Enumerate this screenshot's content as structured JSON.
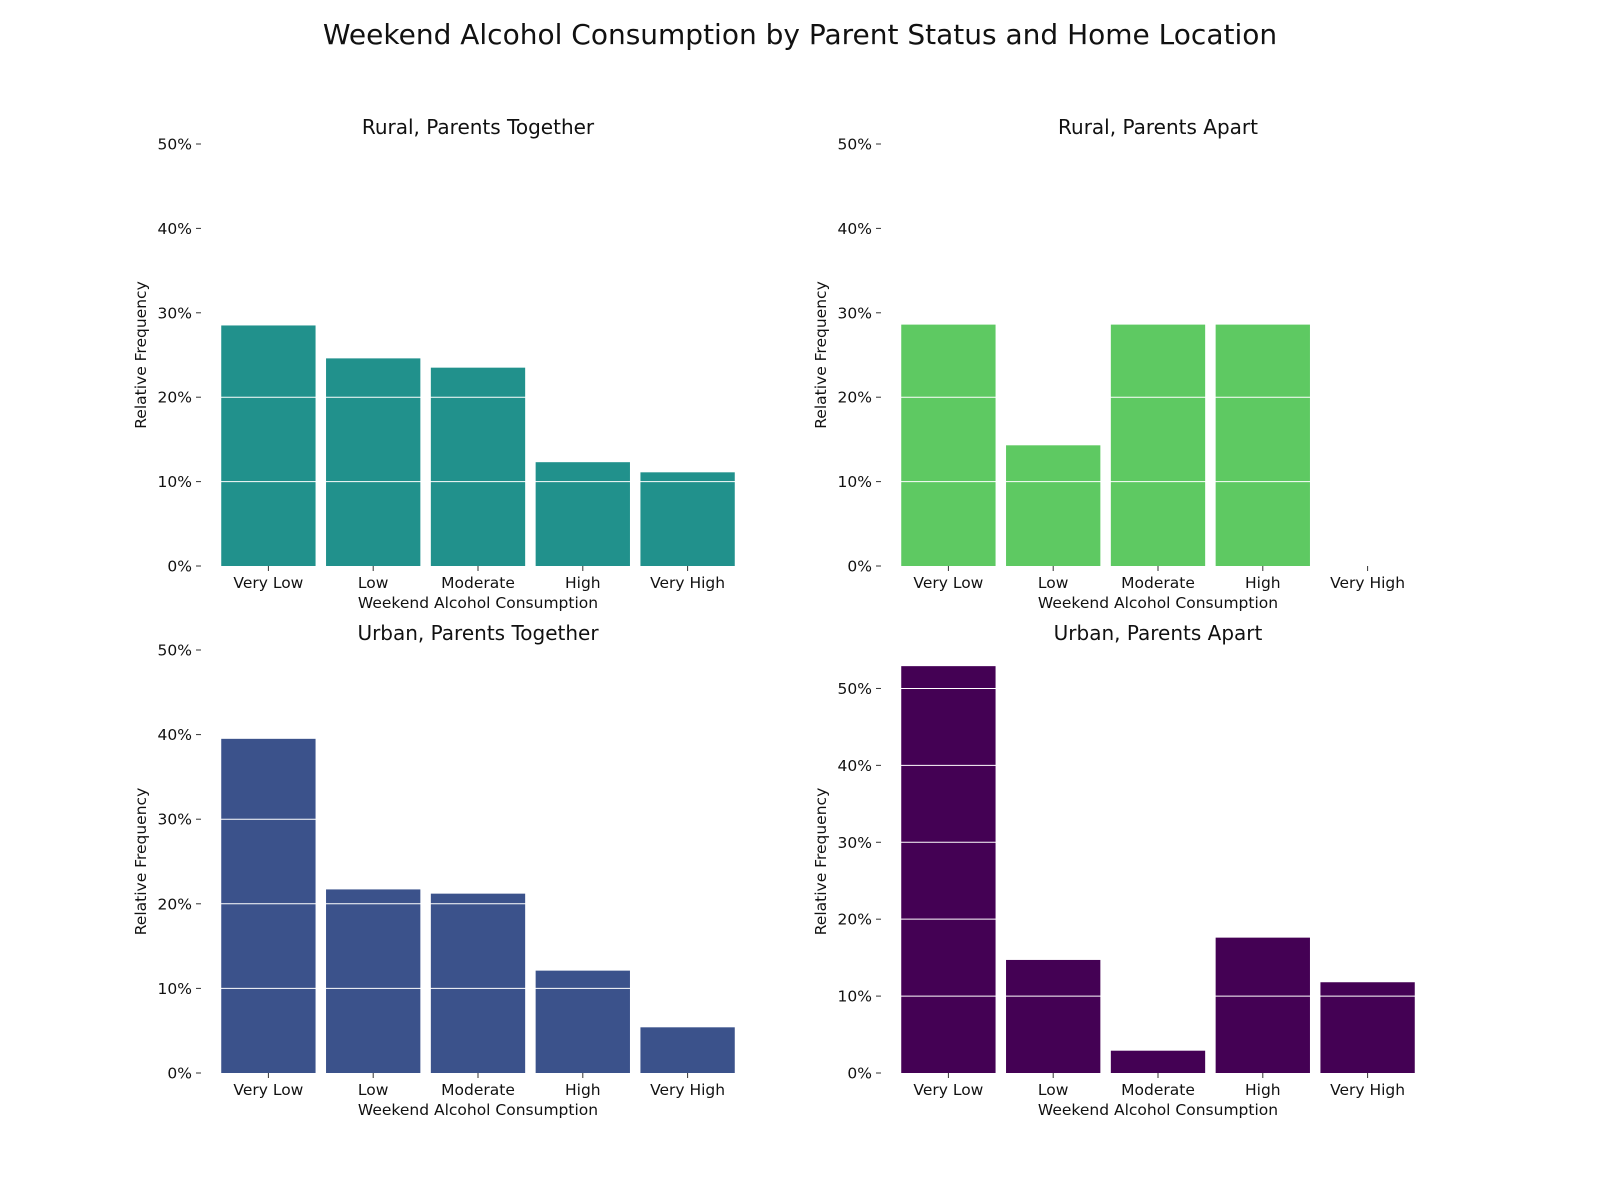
{
  "figure": {
    "title": "Weekend Alcohol Consumption by Parent Status and Home Location"
  },
  "chart_data": [
    {
      "type": "bar",
      "title": "Rural, Parents Together",
      "xlabel": "Weekend Alcohol Consumption",
      "ylabel": "Relative Frequency",
      "categories": [
        "Very Low",
        "Low",
        "Moderate",
        "High",
        "Very High"
      ],
      "values": [
        28.5,
        24.6,
        23.5,
        12.3,
        11.1
      ],
      "ylim": [
        0,
        50
      ],
      "yticks": [
        0,
        10,
        20,
        30,
        40,
        50
      ],
      "ytick_labels": [
        "0%",
        "10%",
        "20%",
        "30%",
        "40%",
        "50%"
      ],
      "color": "#21918c",
      "grid": "horizontal white lines over bars"
    },
    {
      "type": "bar",
      "title": "Rural, Parents Apart",
      "xlabel": "Weekend Alcohol Consumption",
      "ylabel": "Relative Frequency",
      "categories": [
        "Very Low",
        "Low",
        "Moderate",
        "High",
        "Very High"
      ],
      "values": [
        28.6,
        14.3,
        28.6,
        28.6,
        0
      ],
      "ylim": [
        0,
        50
      ],
      "yticks": [
        0,
        10,
        20,
        30,
        40,
        50
      ],
      "ytick_labels": [
        "0%",
        "10%",
        "20%",
        "30%",
        "40%",
        "50%"
      ],
      "color": "#5ec962",
      "grid": "horizontal white lines over bars"
    },
    {
      "type": "bar",
      "title": "Urban, Parents Together",
      "xlabel": "Weekend Alcohol Consumption",
      "ylabel": "Relative Frequency",
      "categories": [
        "Very Low",
        "Low",
        "Moderate",
        "High",
        "Very High"
      ],
      "values": [
        39.5,
        21.7,
        21.2,
        12.1,
        5.4
      ],
      "ylim": [
        0,
        50
      ],
      "yticks": [
        0,
        10,
        20,
        30,
        40,
        50
      ],
      "ytick_labels": [
        "0%",
        "10%",
        "20%",
        "30%",
        "40%",
        "50%"
      ],
      "color": "#3b528b",
      "grid": "horizontal white lines over bars"
    },
    {
      "type": "bar",
      "title": "Urban, Parents Apart",
      "xlabel": "Weekend Alcohol Consumption",
      "ylabel": "Relative Frequency",
      "categories": [
        "Very Low",
        "Low",
        "Moderate",
        "High",
        "Very High"
      ],
      "values": [
        52.9,
        14.7,
        2.9,
        17.6,
        11.8
      ],
      "ylim": [
        0,
        55
      ],
      "yticks": [
        0,
        10,
        20,
        30,
        40,
        50
      ],
      "ytick_labels": [
        "0%",
        "10%",
        "20%",
        "30%",
        "40%",
        "50%"
      ],
      "color": "#440154",
      "grid": "horizontal white lines over bars"
    }
  ]
}
